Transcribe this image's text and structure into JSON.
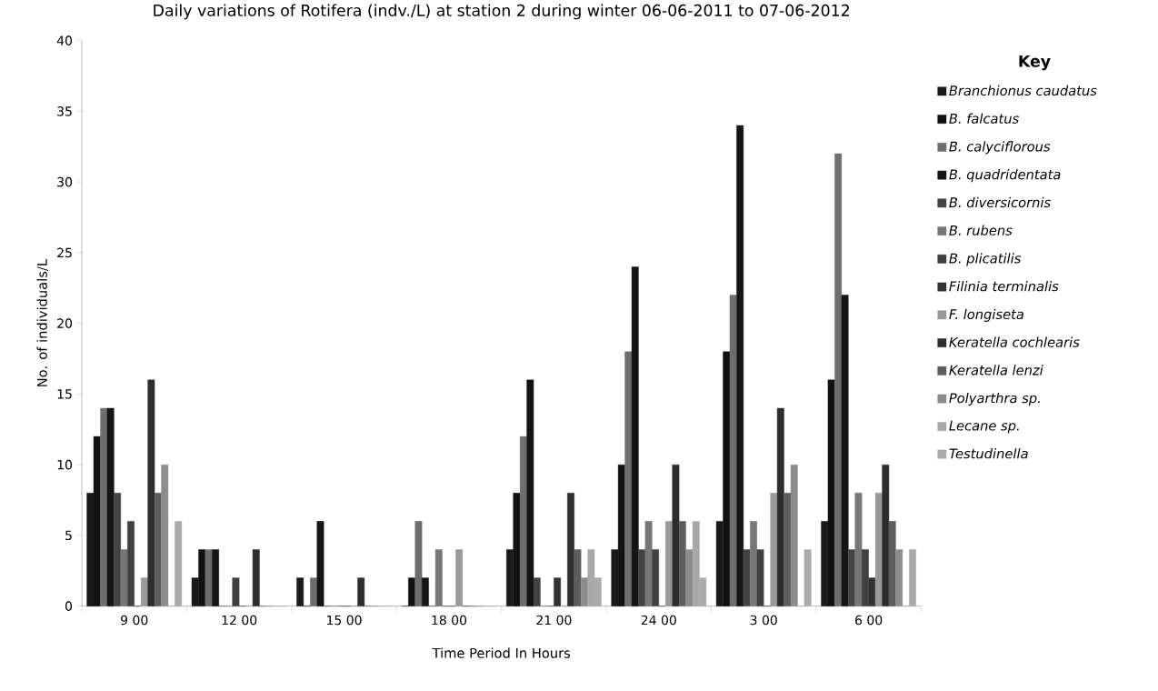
{
  "chart_data": {
    "type": "bar",
    "title": "Daily variations of Rotifera (indv./L) at station 2 during winter 06-06-2011 to 07-06-2012",
    "xlabel": "Time Period In Hours",
    "ylabel": "No. of individuals/L",
    "legend_title": "Key",
    "legend": "right",
    "categories": [
      "9 00",
      "12 00",
      "15 00",
      "18 00",
      "21 00",
      "24 00",
      "3 00",
      "6 00"
    ],
    "ylim": [
      0,
      40
    ],
    "yticks": [
      0,
      5,
      10,
      15,
      20,
      25,
      30,
      35,
      40
    ],
    "series": [
      {
        "name": "Branchionus caudatus",
        "color": "#1a1a1a",
        "values": [
          8,
          2,
          2,
          0,
          4,
          4,
          6,
          6
        ]
      },
      {
        "name": "B. falcatus",
        "color": "#111111",
        "values": [
          12,
          4,
          0,
          2,
          8,
          10,
          18,
          16
        ]
      },
      {
        "name": "B. calyciflorous",
        "color": "#6e6e6e",
        "values": [
          14,
          4,
          2,
          6,
          12,
          18,
          22,
          32
        ]
      },
      {
        "name": "B. quadridentata",
        "color": "#151515",
        "values": [
          14,
          4,
          6,
          2,
          16,
          24,
          34,
          22
        ]
      },
      {
        "name": "B. diversicornis",
        "color": "#444444",
        "values": [
          8,
          0,
          0,
          0,
          2,
          4,
          4,
          4
        ]
      },
      {
        "name": "B. rubens",
        "color": "#777777",
        "values": [
          4,
          0,
          0,
          4,
          0,
          6,
          6,
          8
        ]
      },
      {
        "name": "B. plicatilis",
        "color": "#404040",
        "values": [
          6,
          2,
          0,
          0,
          0,
          4,
          4,
          4
        ]
      },
      {
        "name": "Filinia terminalis",
        "color": "#333333",
        "values": [
          0,
          0,
          0,
          0,
          2,
          0,
          0,
          2
        ]
      },
      {
        "name": "F. longiseta",
        "color": "#999999",
        "values": [
          2,
          0,
          0,
          4,
          0,
          6,
          8,
          8
        ]
      },
      {
        "name": "Keratella cochlearis",
        "color": "#2e2e2e",
        "values": [
          16,
          4,
          2,
          0,
          8,
          10,
          14,
          10
        ]
      },
      {
        "name": "Keratella lenzi",
        "color": "#5e5e5e",
        "values": [
          8,
          0,
          0,
          0,
          4,
          6,
          8,
          6
        ]
      },
      {
        "name": "Polyarthra sp.",
        "color": "#8c8c8c",
        "values": [
          10,
          0,
          0,
          0,
          2,
          4,
          10,
          4
        ]
      },
      {
        "name": "Lecane sp.",
        "color": "#a8a8a8",
        "values": [
          0,
          0,
          0,
          0,
          4,
          6,
          0,
          0
        ]
      },
      {
        "name": "Testudinella",
        "color": "#aaaaaa",
        "values": [
          6,
          0,
          0,
          0,
          2,
          2,
          4,
          4
        ]
      }
    ]
  }
}
